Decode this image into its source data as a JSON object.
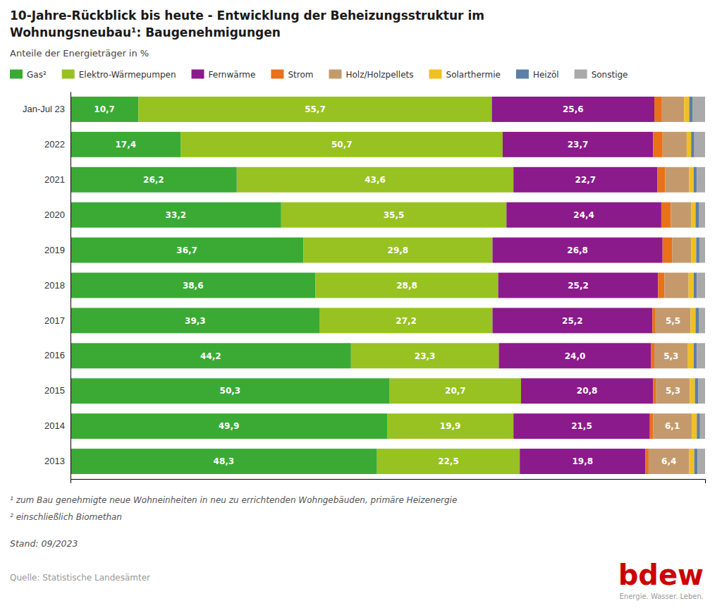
{
  "chart_data": {
    "type": "bar",
    "orientation": "horizontal",
    "stacked": true,
    "data_labels": true,
    "grid": false,
    "legend": "top",
    "tick_labels": "y",
    "title": [
      "10-Jahre-Rückblick bis heute - Entwicklung der Beheizungsstruktur im",
      "Wohnungsneubau¹: Baugenehmigungen"
    ],
    "subtitle": "Anteile der Energieträger in %",
    "categories": [
      "Jan-Jul 23",
      "2022",
      "2021",
      "2020",
      "2019",
      "2018",
      "2017",
      "2016",
      "2015",
      "2014",
      "2013"
    ],
    "xlim": [
      0,
      100
    ],
    "xticks": [],
    "series": [
      {
        "name": "Gas²",
        "color": "#3aaa35",
        "values": [
          10.7,
          17.4,
          26.2,
          33.2,
          36.7,
          38.6,
          39.3,
          44.2,
          50.3,
          49.9,
          48.3
        ],
        "value_labels": [
          "10,7",
          "17,4",
          "26,2",
          "33,2",
          "36,7",
          "38,6",
          "39,3",
          "44,2",
          "50,3",
          "49,9",
          "48,3"
        ]
      },
      {
        "name": "Elektro-Wärmepumpen",
        "color": "#97c221",
        "values": [
          55.7,
          50.7,
          43.6,
          35.5,
          29.8,
          28.8,
          27.2,
          23.3,
          20.7,
          19.9,
          22.5
        ],
        "value_labels": [
          "55,7",
          "50,7",
          "43,6",
          "35,5",
          "29,8",
          "28,8",
          "27,2",
          "23,3",
          "20,7",
          "19,9",
          "22,5"
        ]
      },
      {
        "name": "Fernwärme",
        "color": "#8b1a8b",
        "values": [
          25.6,
          23.7,
          22.7,
          24.4,
          26.8,
          25.2,
          25.2,
          24.0,
          20.8,
          21.5,
          19.8
        ],
        "value_labels": [
          "25,6",
          "23,7",
          "22,7",
          "24,4",
          "26,8",
          "25,2",
          "25,2",
          "24,0",
          "20,8",
          "21,5",
          "19,8"
        ]
      },
      {
        "name": "Strom",
        "color": "#e8711a",
        "values": [
          1.2,
          1.5,
          1.2,
          1.5,
          1.5,
          1.0,
          0.5,
          0.5,
          0.5,
          0.5,
          0.5
        ]
      },
      {
        "name": "Holz/Holzpellets",
        "color": "#c49a6c",
        "values": [
          3.5,
          3.8,
          3.8,
          3.2,
          3.0,
          3.8,
          5.5,
          5.3,
          5.3,
          6.1,
          6.4
        ],
        "value_labels": [
          null,
          null,
          null,
          null,
          null,
          null,
          "5,5",
          "5,3",
          "5,3",
          "6,1",
          "6,4"
        ]
      },
      {
        "name": "Solarthermie",
        "color": "#f0c020",
        "values": [
          0.8,
          0.7,
          0.7,
          0.7,
          0.8,
          0.8,
          0.8,
          0.9,
          0.8,
          0.8,
          0.8
        ]
      },
      {
        "name": "Heizöl",
        "color": "#5b7fa6",
        "values": [
          0.5,
          0.5,
          0.5,
          0.5,
          0.5,
          0.5,
          0.5,
          0.5,
          0.5,
          0.5,
          0.5
        ]
      },
      {
        "name": "Sonstige",
        "color": "#aaaaaa",
        "values": [
          2.0,
          1.7,
          1.3,
          1.0,
          0.9,
          1.3,
          1.0,
          1.3,
          1.1,
          0.8,
          1.2
        ]
      }
    ],
    "annotations": [
      "¹ zum Bau genehmigte neue Wohneinheiten in neu zu errichtenden Wohngebäuden, primäre Heizenergie",
      "² einschließlich Biomethan",
      "Stand: 09/2023",
      "Quelle: Statistische Landesämter",
      "bdew",
      "Energie. Wasser. Leben."
    ]
  }
}
